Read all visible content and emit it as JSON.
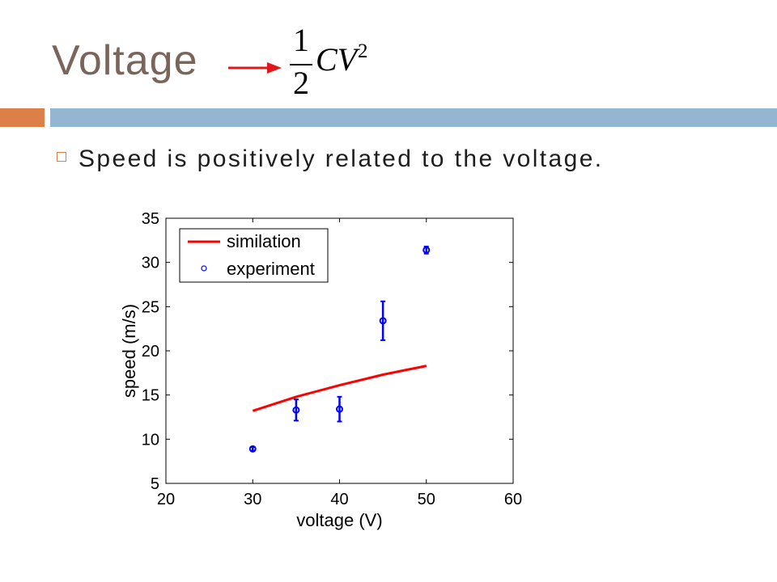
{
  "slide": {
    "title": "Voltage",
    "formula": {
      "numerator": "1",
      "denominator": "2",
      "body": "CV",
      "exponent": "2"
    },
    "bullets": [
      {
        "text": "Speed is positively related to the voltage."
      }
    ]
  },
  "icons": {
    "title_arrow": "right-arrow-icon",
    "bullet": "hollow-square-bullet-icon"
  },
  "colors": {
    "title": "#7A655B",
    "arrow": "#E2171C",
    "accent_orange": "#DD8047",
    "accent_blue": "#94B6D2",
    "text": "#1E1E1E"
  },
  "chart_data": {
    "type": "scatter",
    "xlabel": "voltage (V)",
    "ylabel": "speed (m/s)",
    "xlim": [
      20,
      60
    ],
    "ylim": [
      5,
      35
    ],
    "xticks": [
      20,
      30,
      40,
      50,
      60
    ],
    "yticks": [
      5,
      10,
      15,
      20,
      25,
      30,
      35
    ],
    "grid": false,
    "legend_position": "top-left",
    "series": [
      {
        "name": "similation",
        "type": "line",
        "color": "#FF0000",
        "x": [
          30,
          35,
          40,
          45,
          50
        ],
        "y": [
          13.2,
          14.8,
          16.1,
          17.3,
          18.3
        ]
      },
      {
        "name": "experiment",
        "type": "scatter",
        "marker": "circle",
        "error_bars": true,
        "color": "#0000FF",
        "x": [
          30,
          35,
          40,
          45,
          50
        ],
        "y": [
          8.9,
          13.3,
          13.4,
          23.4,
          31.4
        ],
        "error": [
          0.2,
          1.2,
          1.4,
          2.2,
          0.4
        ]
      }
    ]
  }
}
